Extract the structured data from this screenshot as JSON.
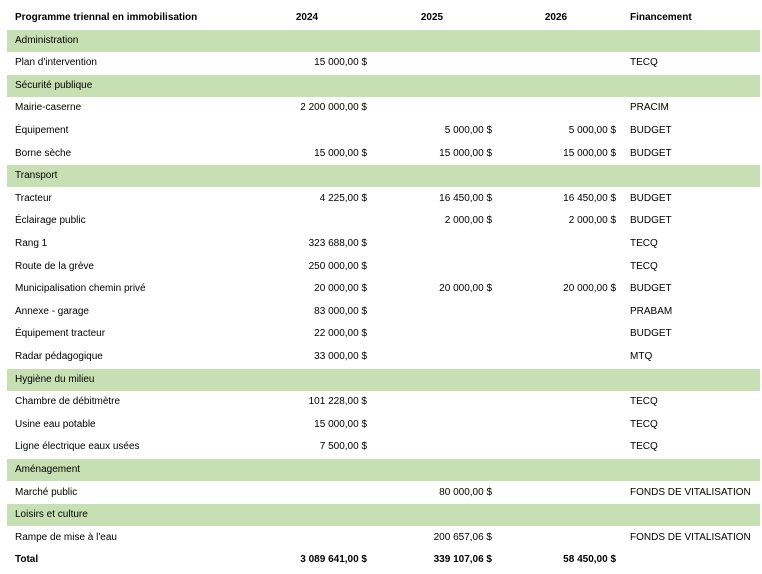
{
  "header": {
    "title": "Programme triennal en immobilisation",
    "y2024": "2024",
    "y2025": "2025",
    "y2026": "2026",
    "financing": "Financement"
  },
  "sections": [
    {
      "name": "Administration",
      "items": [
        {
          "label": "Plan d'intervention",
          "y2024": "15 000,00 $",
          "y2025": "",
          "y2026": "",
          "financing": "TECQ"
        }
      ]
    },
    {
      "name": "Sécurité publique",
      "items": [
        {
          "label": "Mairie-caserne",
          "y2024": "2 200 000,00 $",
          "y2025": "",
          "y2026": "",
          "financing": "PRACIM"
        },
        {
          "label": "Équipement",
          "y2024": "",
          "y2025": "5 000,00 $",
          "y2026": "5 000,00 $",
          "financing": "BUDGET"
        },
        {
          "label": "Borne sèche",
          "y2024": "15 000,00 $",
          "y2025": "15 000,00 $",
          "y2026": "15 000,00 $",
          "financing": "BUDGET"
        }
      ]
    },
    {
      "name": "Transport",
      "items": [
        {
          "label": "Tracteur",
          "y2024": "4 225,00 $",
          "y2025": "16 450,00 $",
          "y2026": "16 450,00 $",
          "financing": "BUDGET"
        },
        {
          "label": "Éclairage public",
          "y2024": "",
          "y2025": "2 000,00 $",
          "y2026": "2 000,00 $",
          "financing": "BUDGET"
        },
        {
          "label": "Rang 1",
          "y2024": "323 688,00 $",
          "y2025": "",
          "y2026": "",
          "financing": "TECQ"
        },
        {
          "label": "Route de la grève",
          "y2024": "250 000,00 $",
          "y2025": "",
          "y2026": "",
          "financing": "TECQ"
        },
        {
          "label": "Municipalisation chemin privé",
          "y2024": "20 000,00 $",
          "y2025": "20 000,00 $",
          "y2026": "20 000,00 $",
          "financing": "BUDGET"
        },
        {
          "label": "Annexe - garage",
          "y2024": "83 000,00 $",
          "y2025": "",
          "y2026": "",
          "financing": "PRABAM"
        },
        {
          "label": "Équipement tracteur",
          "y2024": "22 000,00 $",
          "y2025": "",
          "y2026": "",
          "financing": "BUDGET"
        },
        {
          "label": "Radar pédagogique",
          "y2024": "33 000,00 $",
          "y2025": "",
          "y2026": "",
          "financing": "MTQ"
        }
      ]
    },
    {
      "name": "Hygiène du milieu",
      "items": [
        {
          "label": "Chambre de débitmètre",
          "y2024": "101 228,00 $",
          "y2025": "",
          "y2026": "",
          "financing": "TECQ"
        },
        {
          "label": "Usine eau potable",
          "y2024": "15 000,00 $",
          "y2025": "",
          "y2026": "",
          "financing": "TECQ"
        },
        {
          "label": "Ligne électrique eaux usées",
          "y2024": "7 500,00 $",
          "y2025": "",
          "y2026": "",
          "financing": "TECQ"
        }
      ]
    },
    {
      "name": "Aménagement",
      "items": [
        {
          "label": "Marché public",
          "y2024": "",
          "y2025": "80 000,00 $",
          "y2026": "",
          "financing": "FONDS DE VITALISATION"
        }
      ]
    },
    {
      "name": "Loisirs et culture",
      "items": [
        {
          "label": "Rampe de mise à l'eau",
          "y2024": "",
          "y2025": "200 657,06 $",
          "y2026": "",
          "financing": "FONDS DE VITALISATION"
        }
      ]
    }
  ],
  "total": {
    "label": "Total",
    "y2024": "3 089 641,00 $",
    "y2025": "339 107,06 $",
    "y2026": "58 450,00 $"
  },
  "colors": {
    "section_fill": "#c6e0b4"
  }
}
